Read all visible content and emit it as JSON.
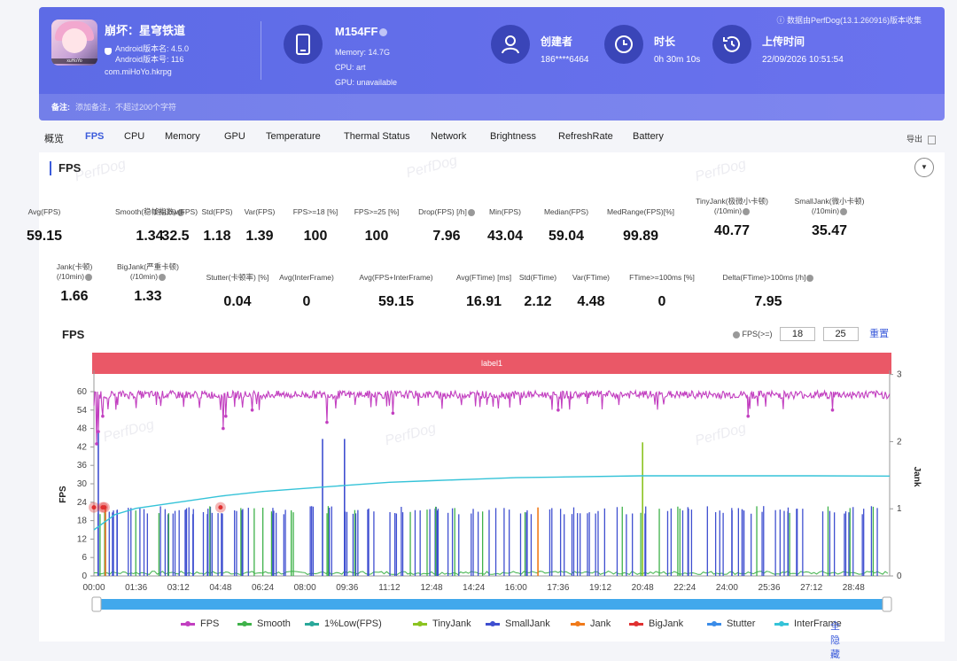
{
  "header": {
    "app_name": "崩坏：星穹铁道",
    "android_version": "Android版本名: 4.5.0",
    "android_code": "Android版本号: 116",
    "package": "com.miHoYo.hkrpg",
    "icon_label": "xuHoYo",
    "device_name": "M154FF",
    "memory": "Memory: 14.7G",
    "cpu": "CPU: art",
    "gpu": "GPU: unavailable",
    "creator_label": "创建者",
    "creator_value": "186****6464",
    "duration_label": "时长",
    "duration_value": "0h 30m 10s",
    "upload_label": "上传时间",
    "upload_value": "22/09/2026 10:51:54",
    "top_note": "ⓘ 数据由PerfDog(13.1.260916)版本收集",
    "note_label": "备注:",
    "note_placeholder": "添加备注，不超过200个字符"
  },
  "tabs": [
    "概览",
    "FPS",
    "CPU",
    "Memory",
    "GPU",
    "Temperature",
    "Thermal Status",
    "Network",
    "Brightness",
    "RefreshRate",
    "Battery"
  ],
  "active_tab": "FPS",
  "export_label": "导出",
  "panel": {
    "title": "FPS",
    "watermark": "PerfDog"
  },
  "metrics_row1": [
    {
      "label": "Avg(FPS)",
      "value": "59.15"
    },
    {
      "label": "Smooth(稳帧指数)",
      "value": "1.34",
      "q": true
    },
    {
      "label": "1%Low(FPS)",
      "value": "32.5"
    },
    {
      "label": "Std(FPS)",
      "value": "1.18"
    },
    {
      "label": "Var(FPS)",
      "value": "1.39"
    },
    {
      "label": "FPS>=18 [%]",
      "value": "100"
    },
    {
      "label": "FPS>=25 [%]",
      "value": "100"
    },
    {
      "label": "Drop(FPS) [/h]",
      "value": "7.96",
      "q": true
    },
    {
      "label": "Min(FPS)",
      "value": "43.04"
    },
    {
      "label": "Median(FPS)",
      "value": "59.04"
    },
    {
      "label": "MedRange(FPS)[%]",
      "value": "99.89"
    },
    {
      "label": "TinyJank(极微小卡顿)",
      "label2": "(/10min)",
      "value": "40.77",
      "q": true
    },
    {
      "label": "SmallJank(微小卡顿)",
      "label2": "(/10min)",
      "value": "35.47",
      "q": true
    }
  ],
  "metrics_row2": [
    {
      "label": "Jank(卡顿)",
      "label2": "(/10min)",
      "value": "1.66",
      "q": true
    },
    {
      "label": "BigJank(严重卡顿)",
      "label2": "(/10min)",
      "value": "1.33",
      "q": true
    },
    {
      "label": "Stutter(卡顿率) [%]",
      "value": "0.04"
    },
    {
      "label": "Avg(InterFrame)",
      "value": "0"
    },
    {
      "label": "Avg(FPS+InterFrame)",
      "value": "59.15"
    },
    {
      "label": "Avg(FTime) [ms]",
      "value": "16.91"
    },
    {
      "label": "Std(FTime)",
      "value": "2.12"
    },
    {
      "label": "Var(FTime)",
      "value": "4.48"
    },
    {
      "label": "FTime>=100ms [%]",
      "value": "0"
    },
    {
      "label": "Delta(FTime)>100ms [/h]",
      "value": "7.95",
      "q": true
    }
  ],
  "chart_section": {
    "title": "FPS",
    "filter_label": "FPS(>=)",
    "filter_a": "18",
    "filter_b": "25",
    "reset_label": "重置",
    "label_bar": "label1"
  },
  "chart_data": {
    "type": "line",
    "ylabel": "FPS",
    "y2label": "Jank",
    "ylim": [
      0,
      60
    ],
    "y_ticks": [
      "0",
      "6",
      "12",
      "18",
      "24",
      "30",
      "36",
      "42",
      "48",
      "54",
      "60"
    ],
    "y2lim": [
      0,
      3
    ],
    "y2_ticks": [
      "0",
      "1",
      "2",
      "3"
    ],
    "x_ticks": [
      "00:00",
      "01:36",
      "03:12",
      "04:48",
      "06:24",
      "08:00",
      "09:36",
      "11:12",
      "12:48",
      "14:24",
      "16:00",
      "17:36",
      "19:12",
      "20:48",
      "22:24",
      "24:00",
      "25:36",
      "27:12",
      "28:48"
    ],
    "fps_baseline": 59,
    "fps_dips": [
      {
        "t": "00:06",
        "v": 43
      },
      {
        "t": "00:10",
        "v": 47
      },
      {
        "t": "00:20",
        "v": 52
      },
      {
        "t": "04:54",
        "v": 48
      },
      {
        "t": "05:00",
        "v": 52
      },
      {
        "t": "06:00",
        "v": 54
      },
      {
        "t": "08:50",
        "v": 50
      },
      {
        "t": "11:20",
        "v": 53
      },
      {
        "t": "17:36",
        "v": 54
      },
      {
        "t": "24:48",
        "v": 52
      },
      {
        "t": "28:00",
        "v": 54
      }
    ],
    "low1_fps": [
      {
        "t": "00:00",
        "v": 15
      },
      {
        "t": "00:48",
        "v": 20
      },
      {
        "t": "01:36",
        "v": 22
      },
      {
        "t": "03:12",
        "v": 24
      },
      {
        "t": "04:48",
        "v": 26
      },
      {
        "t": "06:24",
        "v": 27.5
      },
      {
        "t": "08:00",
        "v": 28.5
      },
      {
        "t": "09:36",
        "v": 29.5
      },
      {
        "t": "11:12",
        "v": 30.5
      },
      {
        "t": "12:48",
        "v": 31
      },
      {
        "t": "14:24",
        "v": 31.5
      },
      {
        "t": "16:00",
        "v": 32
      },
      {
        "t": "17:36",
        "v": 32.2
      },
      {
        "t": "20:48",
        "v": 32.6
      },
      {
        "t": "24:00",
        "v": 32.6
      },
      {
        "t": "27:12",
        "v": 32.6
      },
      {
        "t": "30:10",
        "v": 32.5
      }
    ],
    "big_jank_markers": [
      "00:00",
      "00:20",
      "00:24",
      "04:48"
    ],
    "small_jank_tall": [
      {
        "t": "08:40",
        "v": 2.0
      },
      {
        "t": "09:30",
        "v": 2.0
      },
      {
        "t": "00:10",
        "v": 2.1
      }
    ],
    "tiny_jank_tall": [
      {
        "t": "20:48",
        "v": 1.95
      }
    ],
    "legend": [
      "FPS",
      "Smooth",
      "1%Low(FPS)",
      "TinyJank",
      "SmallJank",
      "Jank",
      "BigJank",
      "Stutter",
      "InterFrame"
    ],
    "hide_all_label": "全隐藏"
  },
  "colors": {
    "fps": "#c23fc0",
    "smooth": "#3fb24a",
    "low1": "#2aa89a",
    "tinyjank": "#8bc320",
    "smalljank": "#3f4fd0",
    "jank": "#f07a1a",
    "bigjank": "#e03030",
    "stutter": "#3b8ce8",
    "interframe": "#35c3d8"
  }
}
